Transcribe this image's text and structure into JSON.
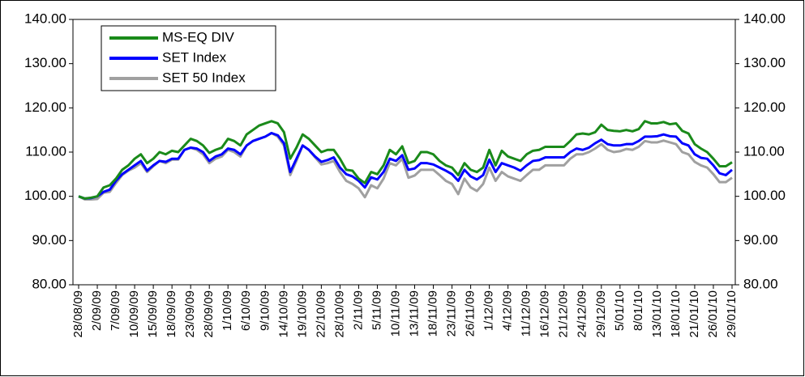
{
  "chart_data": {
    "type": "line",
    "categories": [
      "28/08/09",
      null,
      null,
      "2/09/09",
      null,
      null,
      "7/09/09",
      null,
      null,
      "10/09/09",
      null,
      null,
      "15/09/09",
      null,
      null,
      "18/09/09",
      null,
      null,
      "23/09/09",
      null,
      null,
      "28/09/09",
      null,
      null,
      "1/10/09",
      null,
      null,
      "6/10/09",
      null,
      null,
      "9/10/09",
      null,
      null,
      "14/10/09",
      null,
      null,
      "19/10/09",
      null,
      null,
      "22/10/09",
      null,
      null,
      "28/10/09",
      null,
      null,
      "2/11/09",
      null,
      null,
      "5/11/09",
      null,
      null,
      "10/11/09",
      null,
      null,
      "13/11/09",
      null,
      null,
      "18/11/09",
      null,
      null,
      "23/11/09",
      null,
      null,
      "26/11/09",
      null,
      null,
      "1/12/09",
      null,
      null,
      "4/12/09",
      null,
      null,
      "11/12/09",
      null,
      null,
      "16/12/09",
      null,
      null,
      "21/12/09",
      null,
      null,
      "24/12/09",
      null,
      null,
      "29/12/09",
      null,
      null,
      "5/01/10",
      null,
      null,
      "8/01/10",
      null,
      null,
      "13/01/10",
      null,
      null,
      "18/01/10",
      null,
      null,
      "21/01/10",
      null,
      null,
      "26/01/10",
      null,
      null,
      "29/01/10"
    ],
    "series": [
      {
        "name": "SET 50 Index",
        "color": "#a0a0a0",
        "values": [
          100,
          99.3,
          99.3,
          99.4,
          100.8,
          101,
          103,
          104.8,
          105.8,
          106.5,
          107.5,
          105.5,
          106.8,
          108,
          107.5,
          108.3,
          108.3,
          110.5,
          111,
          110.5,
          109.5,
          107.5,
          108.5,
          109,
          110.5,
          110,
          109,
          111.5,
          112.5,
          113,
          113.5,
          114.3,
          113.5,
          111.5,
          104.8,
          108,
          111.5,
          110.5,
          108.8,
          107.2,
          107.5,
          108,
          105.5,
          103.5,
          102.8,
          101.8,
          99.8,
          102.5,
          101.8,
          104,
          107.5,
          107,
          108.5,
          104.2,
          104.7,
          106,
          106,
          106,
          104.8,
          103.5,
          102.8,
          100.5,
          104,
          102,
          101.2,
          102.8,
          106.5,
          103.5,
          105.5,
          104.5,
          104,
          103.5,
          104.8,
          106,
          106,
          107,
          107,
          107,
          107,
          108.5,
          109.5,
          109.5,
          110,
          110.8,
          111.8,
          110.5,
          110,
          110.2,
          110.7,
          110.5,
          111.2,
          112.5,
          112.2,
          112.2,
          112.6,
          112.2,
          111.8,
          110,
          109.5,
          107.8,
          107,
          106.5,
          105,
          103.2,
          103.2,
          104.2
        ]
      },
      {
        "name": "SET Index",
        "color": "#0000ff",
        "values": [
          100,
          99.5,
          99.6,
          100,
          101,
          101.5,
          103.5,
          105,
          106,
          107,
          108,
          105.8,
          107,
          108,
          107.8,
          108.5,
          108.5,
          110.5,
          111,
          110.8,
          110,
          108,
          109,
          109.5,
          110.8,
          110.5,
          109.5,
          111.5,
          112.5,
          113,
          113.5,
          114.3,
          113.8,
          112,
          105.5,
          108.5,
          111.5,
          110.5,
          109,
          107.8,
          108.2,
          108.8,
          106.5,
          105,
          104.5,
          103.5,
          102,
          104.3,
          103.8,
          105.5,
          108.5,
          108,
          109.3,
          106,
          106.3,
          107.5,
          107.5,
          107.2,
          106.5,
          105.8,
          105,
          103.5,
          106,
          104.5,
          103.8,
          104.8,
          108.3,
          105.5,
          107.5,
          107,
          106.5,
          105.8,
          107,
          108,
          108.2,
          108.8,
          108.8,
          108.8,
          108.8,
          110,
          110.8,
          110.5,
          111,
          112,
          112.8,
          111.8,
          111.5,
          111.5,
          111.8,
          111.8,
          112.5,
          113.5,
          113.5,
          113.6,
          114,
          113.6,
          113.5,
          112,
          111.5,
          109.5,
          108.7,
          108.5,
          107,
          105.2,
          104.8,
          106
        ]
      },
      {
        "name": "MS-EQ DIV",
        "color": "#1a8a1a",
        "values": [
          100,
          99.5,
          99.7,
          100,
          102,
          102.5,
          104,
          106,
          107,
          108.5,
          109.5,
          107.5,
          108.5,
          110,
          109.5,
          110.3,
          110,
          111.5,
          113,
          112.5,
          111.5,
          109.8,
          110.5,
          111,
          113,
          112.5,
          111.5,
          114,
          115,
          116,
          116.5,
          117,
          116.5,
          114.5,
          108.5,
          111,
          114,
          113,
          111.5,
          110,
          110.5,
          110.5,
          108.5,
          106,
          105.8,
          104,
          103,
          105.5,
          105,
          107,
          110.5,
          109.5,
          111.3,
          107.5,
          108,
          110,
          110,
          109.5,
          108,
          107,
          106.5,
          104.8,
          107.5,
          106,
          105.5,
          106.5,
          110.5,
          107,
          110.3,
          109,
          108.5,
          108,
          109.5,
          110.3,
          110.5,
          111.2,
          111.2,
          111.2,
          111.2,
          112.5,
          114,
          114.2,
          114,
          114.5,
          116.2,
          115,
          114.8,
          114.7,
          115,
          114.7,
          115.2,
          117,
          116.5,
          116.5,
          116.8,
          116.3,
          116.5,
          114.8,
          114.2,
          111.8,
          110.8,
          110,
          108.5,
          106.8,
          106.8,
          107.7
        ]
      }
    ],
    "ylim": [
      80,
      140
    ],
    "yticks": [
      {
        "value": 80,
        "label": "80.00"
      },
      {
        "value": 90,
        "label": "90.00"
      },
      {
        "value": 100,
        "label": "100.00"
      },
      {
        "value": 110,
        "label": "110.00"
      },
      {
        "value": 120,
        "label": "120.00"
      },
      {
        "value": 130,
        "label": "130.00"
      },
      {
        "value": 140,
        "label": "140.00"
      }
    ],
    "y2lim": [
      80,
      140
    ],
    "y2ticks": [
      {
        "value": 80,
        "label": "80.00"
      },
      {
        "value": 90,
        "label": "90.00"
      },
      {
        "value": 100,
        "label": "100.00"
      },
      {
        "value": 110,
        "label": "110.00"
      },
      {
        "value": 120,
        "label": "120.00"
      },
      {
        "value": 130,
        "label": "130.00"
      },
      {
        "value": 140,
        "label": "140.00"
      }
    ],
    "legend": "upper left",
    "grid": false
  }
}
